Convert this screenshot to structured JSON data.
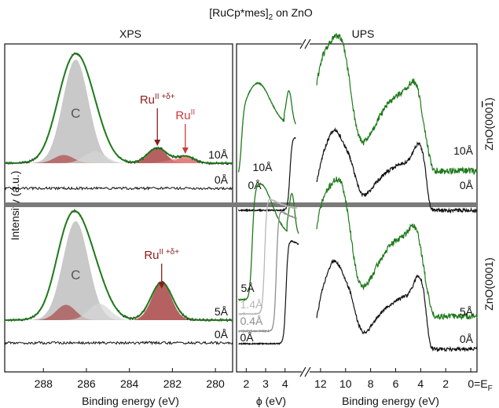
{
  "colors": {
    "black": "#111111",
    "green": "#1e7a1a",
    "carbon_fill": "#bfbfbf",
    "ru_dark": "#9e2c2c",
    "ru_light": "#e06a6a",
    "gray_mid": "#8f8f8f",
    "gray_light": "#b8b8b8",
    "divider": "#7a7a7a"
  },
  "chart_data": {
    "type": "line",
    "title_parts": {
      "pre": "[RuCp*mes]",
      "sub": "2",
      "post": " on ZnO"
    },
    "ylabel": "Intensity (a.u.)",
    "panels": {
      "xps": {
        "title": "XPS",
        "xlabel": "Binding energy (eV)",
        "xlim": [
          289.8,
          279.2
        ],
        "ticks": [
          288,
          286,
          284,
          282,
          280
        ],
        "tick_labels": [
          "288",
          "286",
          "284",
          "282",
          "280"
        ],
        "top": {
          "spectra": [
            {
              "label": "10Å",
              "color": "green",
              "peaks": [
                [
                  287.2,
                  0.5,
                  0.06
                ],
                [
                  286.5,
                  0.75,
                  0.88
                ],
                [
                  285.5,
                  0.6,
                  0.12
                ],
                [
                  282.7,
                  0.45,
                  0.13
                ],
                [
                  281.4,
                  0.4,
                  0.06
                ]
              ]
            },
            {
              "label": "0Å",
              "color": "black",
              "peaks": []
            }
          ],
          "components": [
            {
              "name": "C",
              "center": 286.5,
              "fwhm": 1.4,
              "height": 0.88
            },
            {
              "name": "RuII+δ+",
              "center": 282.7,
              "fwhm": 0.95,
              "height": 0.13
            },
            {
              "name": "RuII",
              "center": 281.4,
              "fwhm": 0.8,
              "height": 0.06
            }
          ],
          "annotations": [
            {
              "text": "Ru",
              "sup": "II +δ+",
              "x": 282.7
            },
            {
              "text": "Ru",
              "sup": "II",
              "x": 281.4
            }
          ]
        },
        "bottom": {
          "spectra": [
            {
              "label": "5Å",
              "color": "green",
              "peaks": [
                [
                  287.1,
                  0.5,
                  0.12
                ],
                [
                  286.5,
                  0.75,
                  0.84
                ],
                [
                  285.4,
                  0.6,
                  0.15
                ],
                [
                  282.5,
                  0.5,
                  0.32
                ]
              ]
            },
            {
              "label": "0Å",
              "color": "black",
              "peaks": []
            }
          ],
          "components": [
            {
              "name": "C",
              "center": 286.5,
              "fwhm": 1.4,
              "height": 0.84
            },
            {
              "name": "RuII+δ+",
              "center": 282.5,
              "fwhm": 1.05,
              "height": 0.32
            }
          ],
          "annotations": [
            {
              "text": "Ru",
              "sup": "II +δ+",
              "x": 282.5
            }
          ]
        }
      },
      "ups_wf": {
        "xlabel": "ϕ (eV)",
        "xlim": [
          1.5,
          4.9
        ],
        "ticks": [
          2,
          3,
          4
        ],
        "tick_labels": [
          "2",
          "3",
          "4"
        ],
        "top": {
          "spectra": [
            {
              "label": "10Å",
              "color": "green",
              "cutoff": 1.8
            },
            {
              "label": "0Å",
              "color": "black",
              "cutoff": 4.25
            }
          ]
        },
        "bottom": {
          "spectra": [
            {
              "label": "5Å",
              "color": "green",
              "cutoff": 2.3
            },
            {
              "label": "1.4Å",
              "color": "gray_light",
              "cutoff": 2.95
            },
            {
              "label": "0.4Å",
              "color": "gray_mid",
              "cutoff": 3.55
            },
            {
              "label": "0Å",
              "color": "black",
              "cutoff": 4.05
            }
          ]
        }
      },
      "ups_vb": {
        "title": "UPS",
        "xlabel": "Binding energy (eV)",
        "xlim": [
          13.0,
          -0.5
        ],
        "ticks": [
          12,
          10,
          8,
          6,
          4,
          2,
          0
        ],
        "tick_labels": [
          "12",
          "10",
          "8",
          "6",
          "4",
          "2",
          "0=E"
        ],
        "ef_sub": "F",
        "top": {
          "facet_label": {
            "text": "ZnO(000",
            "over": "1",
            "close": ")"
          },
          "spectra": [
            {
              "label": "10Å",
              "color": "green"
            },
            {
              "label": "0Å",
              "color": "black"
            }
          ]
        },
        "bottom": {
          "facet_label": {
            "text": "ZnO(0001)",
            "over": "",
            "close": ""
          },
          "spectra": [
            {
              "label": "5Å",
              "color": "green"
            },
            {
              "label": "0Å",
              "color": "black"
            }
          ]
        }
      }
    }
  }
}
